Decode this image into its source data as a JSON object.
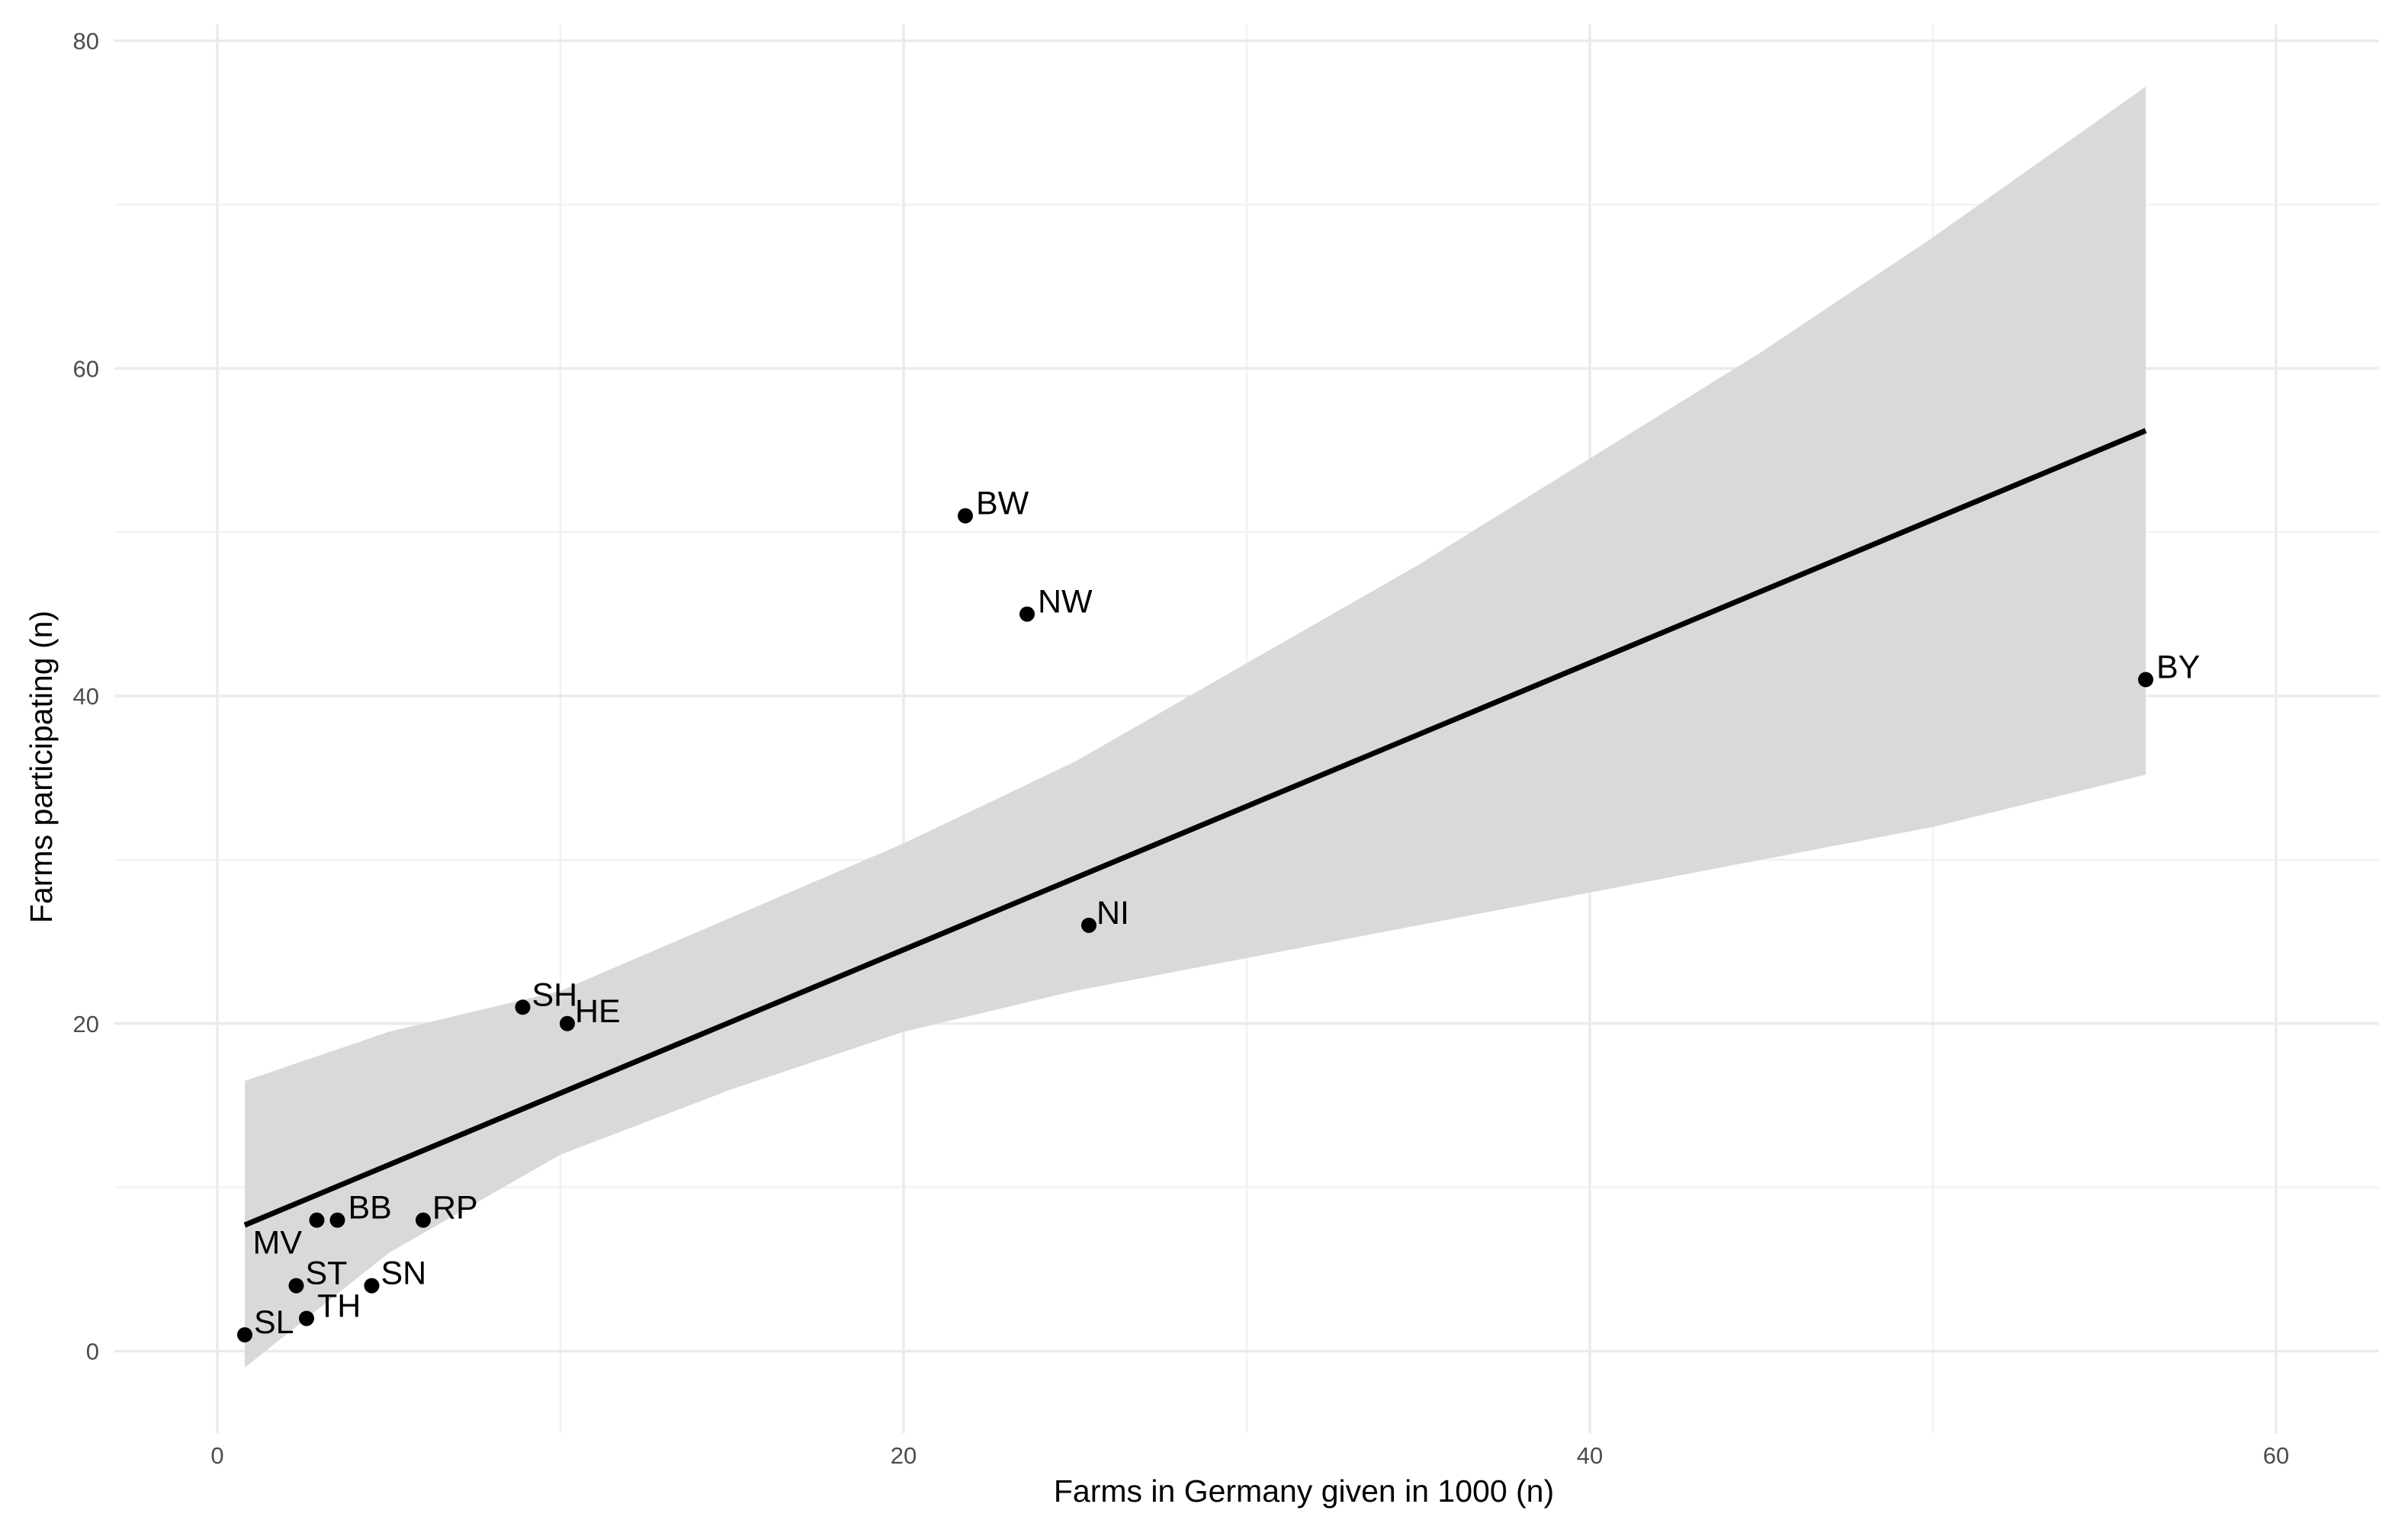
{
  "chart_data": {
    "type": "scatter",
    "title": "",
    "xlabel": "Farms in Germany given in 1000 (n)",
    "ylabel": "Farms participating (n)",
    "xlim": [
      -3,
      63
    ],
    "ylim": [
      -5,
      81
    ],
    "x_ticks": [
      {
        "value": 0,
        "label": "0"
      },
      {
        "value": 20,
        "label": "20"
      },
      {
        "value": 40,
        "label": "40"
      },
      {
        "value": 60,
        "label": "60"
      }
    ],
    "y_ticks": [
      {
        "value": 0,
        "label": "0"
      },
      {
        "value": 20,
        "label": "20"
      },
      {
        "value": 40,
        "label": "40"
      },
      {
        "value": 60,
        "label": "60"
      },
      {
        "value": 80,
        "label": "80"
      }
    ],
    "grid": true,
    "point_color": "#000000",
    "label_color": "#000000",
    "points": [
      {
        "label": "BY",
        "x": 56.2,
        "y": 41
      },
      {
        "label": "BW",
        "x": 21.8,
        "y": 51
      },
      {
        "label": "NW",
        "x": 23.6,
        "y": 45
      },
      {
        "label": "NI",
        "x": 25.4,
        "y": 26
      },
      {
        "label": "SH",
        "x": 8.9,
        "y": 21
      },
      {
        "label": "HE",
        "x": 10.2,
        "y": 20
      },
      {
        "label": "RP",
        "x": 6.0,
        "y": 8
      },
      {
        "label": "BB",
        "x": 3.5,
        "y": 8
      },
      {
        "label": "MV",
        "x": 2.9,
        "y": 8
      },
      {
        "label": "ST",
        "x": 2.3,
        "y": 4
      },
      {
        "label": "SN",
        "x": 4.5,
        "y": 4
      },
      {
        "label": "TH",
        "x": 2.6,
        "y": 2
      },
      {
        "label": "SL",
        "x": 0.8,
        "y": 1
      }
    ],
    "regression": {
      "method": "linear",
      "color": "#000000",
      "x_range": [
        0.8,
        56.2
      ],
      "fit_y": [
        7.7,
        56.2
      ]
    },
    "confidence_band": {
      "color": "#d9d9d9",
      "x": [
        0.8,
        5,
        10,
        15,
        20,
        25,
        30,
        35,
        40,
        45,
        50,
        56.2
      ],
      "lower": [
        -1.0,
        6.0,
        12.0,
        16.0,
        19.5,
        22.0,
        24.0,
        26.0,
        28.0,
        30.0,
        32.0,
        35.2
      ],
      "upper": [
        16.5,
        19.5,
        22.0,
        26.5,
        31.0,
        36.0,
        42.0,
        48.0,
        54.5,
        61.0,
        68.0,
        77.2
      ]
    }
  }
}
